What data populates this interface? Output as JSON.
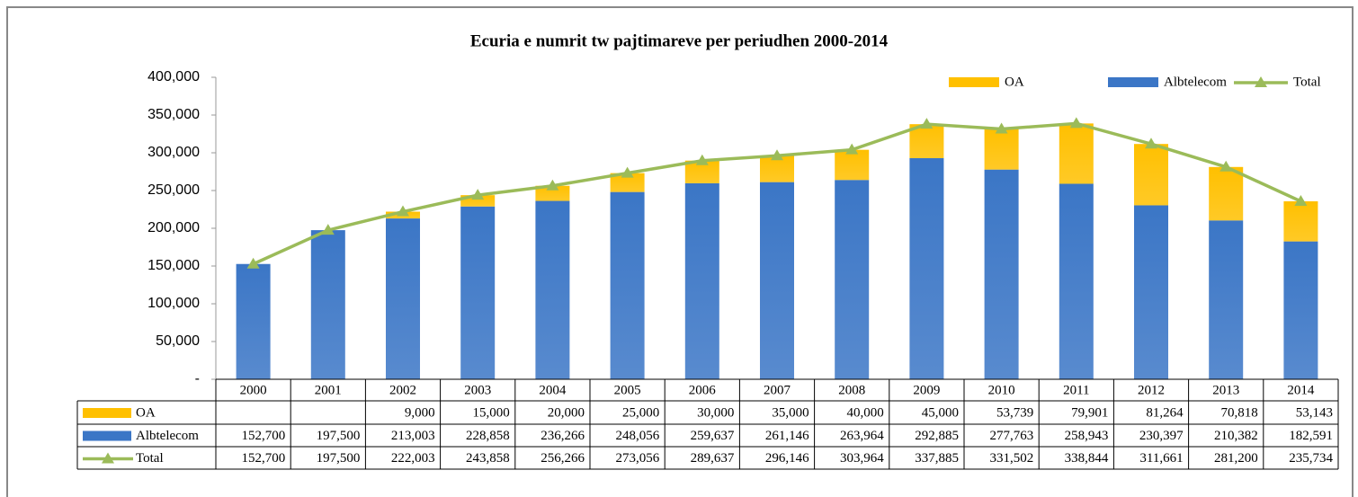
{
  "chart_data": {
    "type": "bar",
    "stacked": true,
    "title": "Ecuria e numrit tw pajtimareve per periudhen 2000-2014",
    "categories": [
      "2000",
      "2001",
      "2002",
      "2003",
      "2004",
      "2005",
      "2006",
      "2007",
      "2008",
      "2009",
      "2010",
      "2011",
      "2012",
      "2013",
      "2014"
    ],
    "series": [
      {
        "name": "OA",
        "color": "#ffc000",
        "values": [
          null,
          null,
          9000,
          15000,
          20000,
          25000,
          30000,
          35000,
          40000,
          45000,
          53739,
          79901,
          81264,
          70818,
          53143
        ],
        "value_labels": [
          null,
          null,
          "9,000",
          "15,000",
          "20,000",
          "25,000",
          "30,000",
          "35,000",
          "40,000",
          "45,000",
          "53,739",
          "79,901",
          "81,264",
          "70,818",
          "53,143"
        ]
      },
      {
        "name": "Albtelecom",
        "color": "#3b76c6",
        "values": [
          152700,
          197500,
          213003,
          228858,
          236266,
          248056,
          259637,
          261146,
          263964,
          292885,
          277763,
          258943,
          230397,
          210382,
          182591
        ],
        "value_labels": [
          "152,700",
          "197,500",
          "213,003",
          "228,858",
          "236,266",
          "248,056",
          "259,637",
          "261,146",
          "263,964",
          "292,885",
          "277,763",
          "258,943",
          "230,397",
          "210,382",
          "182,591"
        ]
      },
      {
        "name": "Total",
        "type": "line",
        "color": "#9bbb59",
        "values": [
          152700,
          197500,
          222003,
          243858,
          256266,
          273056,
          289637,
          296146,
          303964,
          337885,
          331502,
          338844,
          311661,
          281200,
          235734
        ],
        "value_labels": [
          "152,700",
          "197,500",
          "222,003",
          "243,858",
          "256,266",
          "273,056",
          "289,637",
          "296,146",
          "303,964",
          "337,885",
          "331,502",
          "338,844",
          "311,661",
          "281,200",
          "235,734"
        ]
      }
    ],
    "ylim": [
      0,
      400000
    ],
    "yticks": [
      {
        "value": 0,
        "label": "-"
      },
      {
        "value": 50000,
        "label": "50,000"
      },
      {
        "value": 100000,
        "label": "100,000"
      },
      {
        "value": 150000,
        "label": "150,000"
      },
      {
        "value": 200000,
        "label": "200,000"
      },
      {
        "value": 250000,
        "label": "250,000"
      },
      {
        "value": 300000,
        "label": "300,000"
      },
      {
        "value": 350000,
        "label": "350,000"
      },
      {
        "value": 400000,
        "label": "400,000"
      }
    ],
    "legend": "top-right",
    "data_table": true
  }
}
